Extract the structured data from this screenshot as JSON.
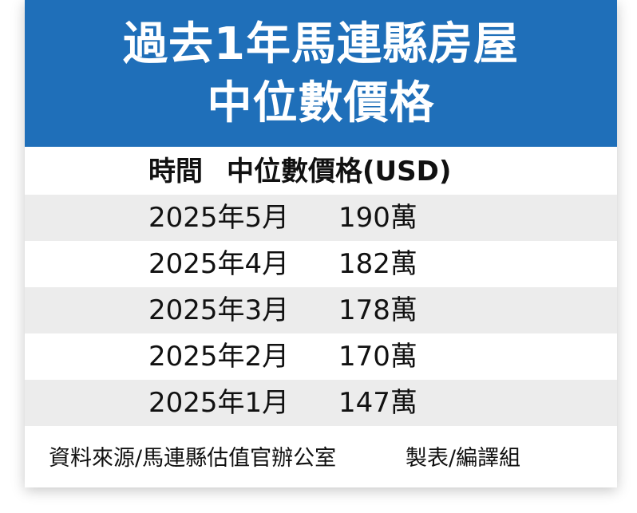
{
  "title": {
    "line1": "過去1年馬連縣房屋",
    "line2": "中位數價格"
  },
  "columns": {
    "time": "時間",
    "price": "中位數價格(USD)"
  },
  "rows": [
    {
      "time": "2025年5月",
      "price": "190萬"
    },
    {
      "time": "2025年4月",
      "price": "182萬"
    },
    {
      "time": "2025年3月",
      "price": "178萬"
    },
    {
      "time": "2025年2月",
      "price": "170萬"
    },
    {
      "time": "2025年1月",
      "price": "147萬"
    }
  ],
  "footer": {
    "source": "資料來源/馬連縣估值官辦公室",
    "maker": "製表/編譯組"
  },
  "colors": {
    "header_bg": "#1f6fb9",
    "row_alt_bg": "#ececec",
    "text": "#111111",
    "title_text": "#ffffff"
  },
  "chart_data": {
    "type": "table",
    "title": "過去1年馬連縣房屋中位數價格",
    "columns": [
      "時間",
      "中位數價格(USD)"
    ],
    "rows": [
      [
        "2025年5月",
        "190萬"
      ],
      [
        "2025年4月",
        "182萬"
      ],
      [
        "2025年3月",
        "178萬"
      ],
      [
        "2025年2月",
        "170萬"
      ],
      [
        "2025年1月",
        "147萬"
      ]
    ],
    "categories": [
      "2025年5月",
      "2025年4月",
      "2025年3月",
      "2025年2月",
      "2025年1月"
    ],
    "values": [
      1900000,
      1820000,
      1780000,
      1700000,
      1470000
    ]
  }
}
